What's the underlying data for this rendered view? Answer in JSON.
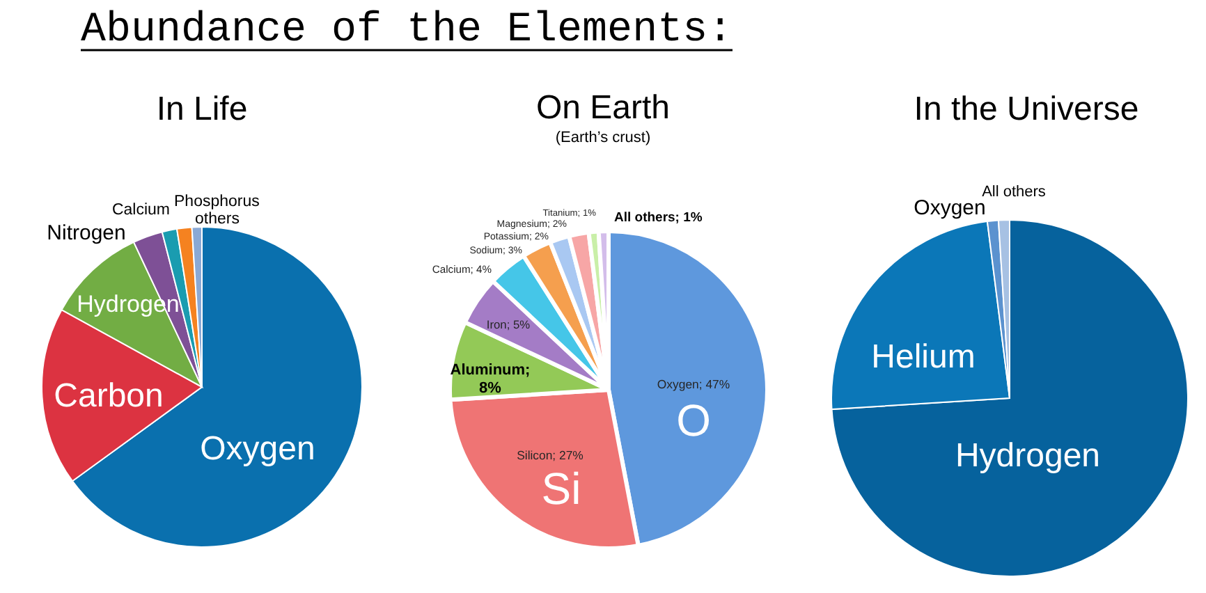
{
  "chart_data": [
    {
      "type": "other",
      "title": "Abundance of the Elements:"
    },
    {
      "type": "pie",
      "title": "In Life",
      "categories": [
        "Oxygen",
        "Carbon",
        "Hydrogen",
        "Nitrogen",
        "Calcium",
        "Phosphorus",
        "others"
      ],
      "values": [
        65,
        18,
        10,
        3,
        1.5,
        1.5,
        1
      ],
      "colors": [
        "#0a70ae",
        "#dc3341",
        "#72ad44",
        "#7e5096",
        "#1a9cb0",
        "#f58220",
        "#8aa9d5"
      ]
    },
    {
      "type": "pie",
      "title": "On Earth",
      "subtitle": "(Earth’s crust)",
      "categories": [
        "Oxygen; 47%",
        "Silicon; 27%",
        "Aluminum;\n8%",
        "Iron; 5%",
        "Calcium; 4%",
        "Sodium; 3%",
        "Potassium; 2%",
        "Magnesium; 2%",
        "Titanium; 1%",
        "All others; 1%"
      ],
      "values": [
        47,
        27,
        8,
        5,
        4,
        3,
        2,
        2,
        1,
        1
      ],
      "colors": [
        "#5e98dd",
        "#ef7474",
        "#93c957",
        "#a47cc6",
        "#45c6e8",
        "#f59f4e",
        "#a9c8f2",
        "#f7a6a6",
        "#c9efa8",
        "#d3bdea"
      ],
      "annotations": [
        {
          "text": "O",
          "x": "Oxygen; 47%"
        },
        {
          "text": "Si",
          "x": "Silicon; 27%"
        }
      ]
    },
    {
      "type": "pie",
      "title": "In the Universe",
      "categories": [
        "Hydrogen",
        "Helium",
        "Oxygen",
        "All others"
      ],
      "values": [
        74,
        24,
        1,
        1
      ],
      "colors": [
        "#06629d",
        "#0b77b8",
        "#5b92cf",
        "#a7c1e3"
      ]
    }
  ]
}
